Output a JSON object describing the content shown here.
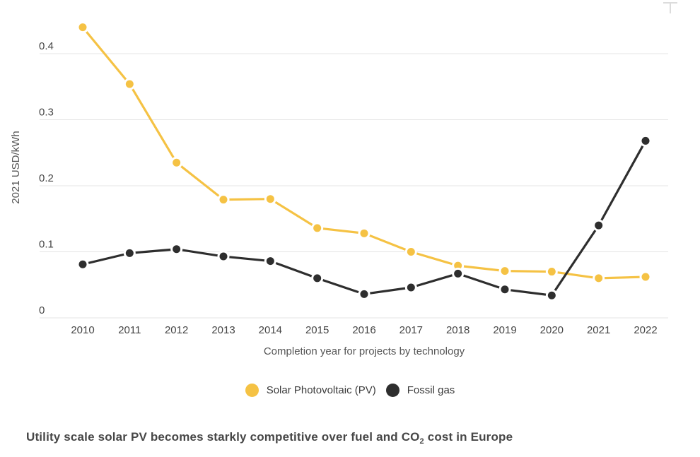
{
  "chart_data": {
    "type": "line",
    "x": [
      2010,
      2011,
      2012,
      2013,
      2014,
      2015,
      2016,
      2017,
      2018,
      2019,
      2020,
      2021,
      2022
    ],
    "series": [
      {
        "name": "Solar Photovoltaic (PV)",
        "color": "#F5C244",
        "values": [
          0.44,
          0.354,
          0.235,
          0.179,
          0.18,
          0.136,
          0.128,
          0.1,
          0.079,
          0.071,
          0.07,
          0.06,
          0.062
        ]
      },
      {
        "name": "Fossil gas",
        "color": "#2E2E2E",
        "values": [
          0.081,
          0.098,
          0.104,
          0.093,
          0.086,
          0.06,
          0.036,
          0.046,
          0.067,
          0.043,
          0.034,
          0.14,
          0.268
        ]
      }
    ],
    "title": "Utility scale solar PV becomes starkly competitive over fuel and CO2 cost in Europe",
    "xlabel": "Completion year for projects by technology",
    "ylabel": "2021 USD/kWh",
    "y_ticks": [
      "0",
      "0.1",
      "0.2",
      "0.3",
      "0.4"
    ],
    "y_tick_values": [
      0,
      0.1,
      0.2,
      0.3,
      0.4
    ],
    "ylim": [
      0,
      0.47
    ],
    "grid": true,
    "legend_position": "bottom-center"
  },
  "legend": [
    {
      "label": "Solar Photovoltaic (PV)",
      "color": "#F5C244"
    },
    {
      "label": "Fossil gas",
      "color": "#2E2E2E"
    }
  ],
  "title": {
    "prefix": "Utility scale solar PV becomes starkly competitive over fuel and CO",
    "subscript": "2",
    "suffix": " cost in Europe"
  },
  "colors": {
    "solar": "#F5C244",
    "fossil": "#2E2E2E",
    "gridline": "#E4E4E4",
    "tick_label": "#454545",
    "axis_title": "#565656",
    "title_text": "#474747",
    "background": "#FFFFFF"
  }
}
